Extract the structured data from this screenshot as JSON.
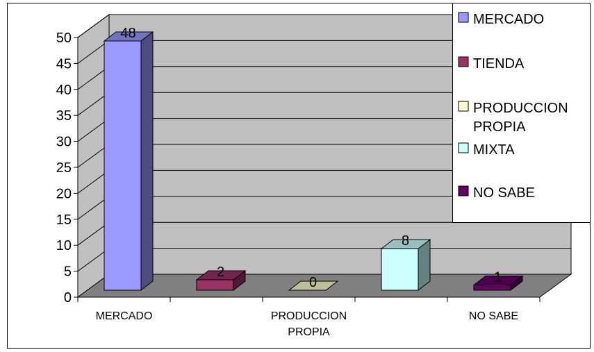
{
  "chart_data": {
    "type": "bar",
    "title": "",
    "xlabel": "",
    "ylabel": "",
    "categories": [
      "MERCADO",
      "TIENDA",
      "PRODUCCION PROPIA",
      "MIXTA",
      "NO SABE"
    ],
    "category_axis_labels": [
      {
        "lines": [
          "MERCADO"
        ]
      },
      {
        "lines": [
          "PRODUCCION",
          "PROPIA"
        ]
      },
      {
        "lines": [
          "NO SABE"
        ]
      }
    ],
    "values": [
      48,
      2,
      0,
      8,
      1
    ],
    "ylim": [
      0,
      50
    ],
    "yticks": [
      0,
      5,
      10,
      15,
      20,
      25,
      30,
      35,
      40,
      45,
      50
    ],
    "grid": true,
    "legend_position": "top-right",
    "legend": [
      {
        "lines": [
          "MERCADO"
        ],
        "color": "#9999ff"
      },
      {
        "lines": [
          "TIENDA"
        ],
        "color": "#993366"
      },
      {
        "lines": [
          "PRODUCCION",
          "PROPIA"
        ],
        "color": "#ffffcc"
      },
      {
        "lines": [
          "MIXTA"
        ],
        "color": "#ccffff"
      },
      {
        "lines": [
          "NO SABE"
        ],
        "color": "#660066"
      }
    ],
    "colors": [
      "#9999ff",
      "#993366",
      "#ffffcc",
      "#ccffff",
      "#660066"
    ],
    "wall_color": "#c0c0c0",
    "floor_color": "#808080"
  }
}
